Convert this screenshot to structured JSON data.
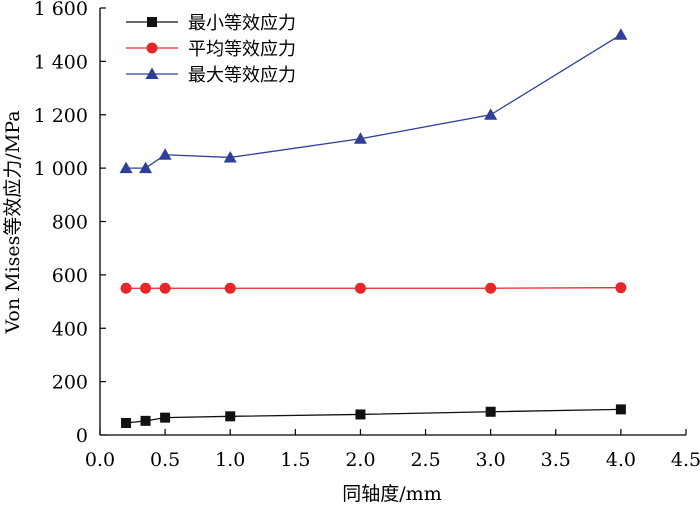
{
  "chart_data": {
    "type": "line",
    "title": "",
    "xlabel": "同轴度/mm",
    "ylabel": "Von Mises等效应力/MPa",
    "xlim": [
      0.0,
      4.5
    ],
    "ylim": [
      0,
      1600
    ],
    "x_ticks": [
      0.0,
      0.5,
      1.0,
      1.5,
      2.0,
      2.5,
      3.0,
      3.5,
      4.0,
      4.5
    ],
    "x_tick_labels": [
      "0.0",
      "0.5",
      "1.0",
      "1.5",
      "2.0",
      "2.5",
      "3.0",
      "3.5",
      "4.0",
      "4.5"
    ],
    "y_ticks": [
      0,
      200,
      400,
      600,
      800,
      1000,
      1200,
      1400,
      1600
    ],
    "y_tick_labels": [
      "0",
      "200",
      "400",
      "600",
      "800",
      "1 000",
      "1 200",
      "1 400",
      "1 600"
    ],
    "grid": false,
    "legend_position": "top-left",
    "x": [
      0.2,
      0.35,
      0.5,
      1.0,
      2.0,
      3.0,
      4.0
    ],
    "series": [
      {
        "name": "最小等效应力",
        "values": [
          45,
          53,
          65,
          70,
          77,
          87,
          96
        ],
        "color": "#111111",
        "marker": "square"
      },
      {
        "name": "平均等效应力",
        "values": [
          550,
          550,
          550,
          550,
          550,
          550,
          552
        ],
        "color": "#e8262a",
        "marker": "circle"
      },
      {
        "name": "最大等效应力",
        "values": [
          1000,
          1000,
          1050,
          1040,
          1110,
          1200,
          1500
        ],
        "color": "#2f3f97",
        "marker": "triangle"
      }
    ]
  }
}
